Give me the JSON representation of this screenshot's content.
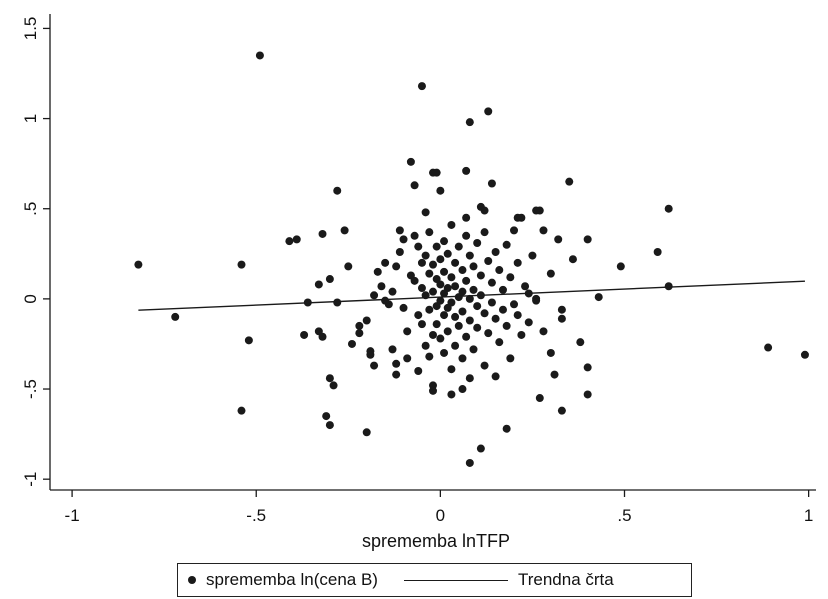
{
  "chart_data": {
    "type": "scatter",
    "title": "",
    "xlabel": "sprememba lnTFP",
    "ylabel": "",
    "xlim": [
      -1.06,
      1.02
    ],
    "ylim": [
      -1.06,
      1.58
    ],
    "x_ticks": [
      -1,
      -0.5,
      0,
      0.5,
      1
    ],
    "x_tick_labels": [
      "-1",
      "-.5",
      "0",
      ".5",
      "1"
    ],
    "y_ticks": [
      -1,
      -0.5,
      0,
      0.5,
      1,
      1.5
    ],
    "y_tick_labels": [
      "-1",
      "-.5",
      "0",
      ".5",
      "1",
      "1.5"
    ],
    "grid": false,
    "legend_position": "bottom",
    "series": [
      {
        "name": "sprememba ln(cena B)",
        "kind": "scatter",
        "color": "#1a1a1a",
        "points": [
          [
            -0.82,
            0.19
          ],
          [
            -0.72,
            -0.1
          ],
          [
            -0.54,
            0.19
          ],
          [
            -0.52,
            -0.23
          ],
          [
            -0.54,
            -0.62
          ],
          [
            -0.49,
            1.35
          ],
          [
            -0.41,
            0.32
          ],
          [
            -0.39,
            0.33
          ],
          [
            -0.37,
            -0.2
          ],
          [
            -0.33,
            0.08
          ],
          [
            -0.32,
            0.36
          ],
          [
            -0.33,
            -0.18
          ],
          [
            -0.32,
            -0.21
          ],
          [
            -0.31,
            -0.65
          ],
          [
            -0.3,
            -0.7
          ],
          [
            -0.3,
            -0.44
          ],
          [
            -0.29,
            -0.48
          ],
          [
            -0.28,
            0.6
          ],
          [
            -0.28,
            -0.02
          ],
          [
            -0.3,
            0.11
          ],
          [
            -0.26,
            0.38
          ],
          [
            -0.25,
            0.18
          ],
          [
            -0.24,
            -0.25
          ],
          [
            -0.22,
            -0.19
          ],
          [
            -0.22,
            -0.15
          ],
          [
            -0.2,
            -0.12
          ],
          [
            -0.19,
            -0.29
          ],
          [
            -0.2,
            -0.74
          ],
          [
            -0.18,
            -0.37
          ],
          [
            -0.19,
            -0.31
          ],
          [
            -0.17,
            0.15
          ],
          [
            -0.16,
            0.07
          ],
          [
            -0.15,
            0.2
          ],
          [
            -0.14,
            -0.03
          ],
          [
            -0.13,
            -0.28
          ],
          [
            -0.12,
            -0.36
          ],
          [
            -0.12,
            -0.42
          ],
          [
            -0.12,
            0.18
          ],
          [
            -0.11,
            0.26
          ],
          [
            -0.11,
            0.38
          ],
          [
            -0.1,
            0.33
          ],
          [
            -0.1,
            -0.05
          ],
          [
            -0.09,
            -0.18
          ],
          [
            -0.09,
            -0.33
          ],
          [
            -0.08,
            0.13
          ],
          [
            -0.07,
            0.35
          ],
          [
            -0.07,
            0.1
          ],
          [
            -0.06,
            0.29
          ],
          [
            -0.06,
            -0.09
          ],
          [
            -0.06,
            -0.4
          ],
          [
            -0.05,
            0.2
          ],
          [
            -0.05,
            0.06
          ],
          [
            -0.05,
            -0.14
          ],
          [
            -0.04,
            0.24
          ],
          [
            -0.04,
            0.02
          ],
          [
            -0.04,
            -0.26
          ],
          [
            -0.03,
            0.37
          ],
          [
            -0.03,
            0.14
          ],
          [
            -0.03,
            -0.06
          ],
          [
            -0.03,
            -0.32
          ],
          [
            -0.02,
            0.19
          ],
          [
            -0.02,
            0.04
          ],
          [
            -0.02,
            -0.2
          ],
          [
            -0.02,
            -0.48
          ],
          [
            -0.01,
            0.29
          ],
          [
            -0.01,
            0.11
          ],
          [
            -0.01,
            -0.04
          ],
          [
            -0.01,
            -0.14
          ],
          [
            0.0,
            0.22
          ],
          [
            0.0,
            0.08
          ],
          [
            0.0,
            -0.01
          ],
          [
            0.0,
            -0.22
          ],
          [
            0.01,
            0.32
          ],
          [
            0.01,
            0.15
          ],
          [
            0.01,
            0.03
          ],
          [
            0.01,
            -0.09
          ],
          [
            0.01,
            -0.3
          ],
          [
            0.02,
            0.25
          ],
          [
            0.02,
            0.06
          ],
          [
            0.02,
            -0.05
          ],
          [
            0.02,
            -0.18
          ],
          [
            0.03,
            0.41
          ],
          [
            0.03,
            0.12
          ],
          [
            0.03,
            -0.02
          ],
          [
            0.03,
            -0.39
          ],
          [
            0.04,
            0.2
          ],
          [
            0.04,
            0.07
          ],
          [
            0.04,
            -0.1
          ],
          [
            0.04,
            -0.26
          ],
          [
            0.05,
            0.29
          ],
          [
            0.05,
            0.01
          ],
          [
            0.05,
            -0.15
          ],
          [
            0.06,
            0.16
          ],
          [
            0.06,
            0.04
          ],
          [
            0.06,
            -0.07
          ],
          [
            0.06,
            -0.33
          ],
          [
            0.07,
            0.35
          ],
          [
            0.07,
            0.1
          ],
          [
            0.07,
            -0.21
          ],
          [
            0.08,
            0.24
          ],
          [
            0.08,
            0.0
          ],
          [
            0.08,
            -0.12
          ],
          [
            0.08,
            -0.44
          ],
          [
            0.09,
            0.18
          ],
          [
            0.09,
            0.05
          ],
          [
            0.09,
            -0.28
          ],
          [
            0.1,
            0.31
          ],
          [
            0.1,
            -0.04
          ],
          [
            0.1,
            -0.16
          ],
          [
            0.11,
            0.13
          ],
          [
            0.11,
            0.02
          ],
          [
            0.12,
            0.37
          ],
          [
            0.12,
            -0.08
          ],
          [
            0.12,
            -0.37
          ],
          [
            0.13,
            0.21
          ],
          [
            0.13,
            -0.19
          ],
          [
            0.14,
            0.09
          ],
          [
            0.14,
            -0.02
          ],
          [
            0.15,
            0.26
          ],
          [
            0.15,
            -0.11
          ],
          [
            0.15,
            -0.43
          ],
          [
            0.16,
            0.16
          ],
          [
            0.16,
            -0.24
          ],
          [
            0.17,
            0.05
          ],
          [
            0.17,
            -0.06
          ],
          [
            0.18,
            0.3
          ],
          [
            0.18,
            -0.15
          ],
          [
            0.19,
            0.12
          ],
          [
            0.19,
            -0.33
          ],
          [
            0.2,
            0.38
          ],
          [
            0.2,
            -0.03
          ],
          [
            0.21,
            0.2
          ],
          [
            0.21,
            -0.09
          ],
          [
            0.22,
            0.45
          ],
          [
            0.22,
            -0.2
          ],
          [
            0.23,
            0.07
          ],
          [
            0.24,
            -0.13
          ],
          [
            0.25,
            0.24
          ],
          [
            0.26,
            -0.01
          ],
          [
            0.27,
            0.49
          ],
          [
            0.28,
            -0.18
          ],
          [
            0.3,
            0.14
          ],
          [
            0.31,
            -0.42
          ],
          [
            0.32,
            0.33
          ],
          [
            0.33,
            -0.06
          ],
          [
            0.35,
            0.65
          ],
          [
            0.36,
            0.22
          ],
          [
            0.38,
            -0.24
          ],
          [
            0.4,
            0.33
          ],
          [
            0.4,
            -0.38
          ],
          [
            0.4,
            -0.53
          ],
          [
            0.43,
            0.01
          ],
          [
            0.49,
            0.18
          ],
          [
            0.59,
            0.26
          ],
          [
            0.62,
            0.5
          ],
          [
            0.62,
            0.07
          ],
          [
            0.89,
            -0.27
          ],
          [
            0.99,
            -0.31
          ],
          [
            -0.05,
            1.18
          ],
          [
            0.08,
            0.98
          ],
          [
            0.13,
            1.04
          ],
          [
            -0.08,
            0.76
          ],
          [
            0.07,
            0.71
          ],
          [
            0.14,
            0.64
          ],
          [
            -0.02,
            0.7
          ],
          [
            -0.01,
            0.7
          ],
          [
            -0.07,
            0.63
          ],
          [
            0.0,
            0.6
          ],
          [
            0.11,
            0.51
          ],
          [
            0.12,
            0.49
          ],
          [
            -0.04,
            0.48
          ],
          [
            0.07,
            0.45
          ],
          [
            0.21,
            0.45
          ],
          [
            0.26,
            0.49
          ],
          [
            0.28,
            0.38
          ],
          [
            0.33,
            -0.62
          ],
          [
            0.27,
            -0.55
          ],
          [
            0.18,
            -0.72
          ],
          [
            0.11,
            -0.83
          ],
          [
            0.08,
            -0.91
          ],
          [
            0.03,
            -0.53
          ],
          [
            0.06,
            -0.5
          ],
          [
            -0.02,
            -0.51
          ],
          [
            0.33,
            -0.11
          ],
          [
            0.3,
            -0.3
          ],
          [
            -0.36,
            -0.02
          ],
          [
            -0.18,
            0.02
          ],
          [
            -0.15,
            -0.01
          ],
          [
            -0.13,
            0.04
          ],
          [
            0.24,
            0.03
          ],
          [
            0.26,
            0.0
          ]
        ]
      },
      {
        "name": "Trendna črta",
        "kind": "line",
        "color": "#1a1a1a",
        "x": [
          -0.82,
          0.99
        ],
        "y": [
          -0.063,
          0.098
        ]
      }
    ]
  }
}
